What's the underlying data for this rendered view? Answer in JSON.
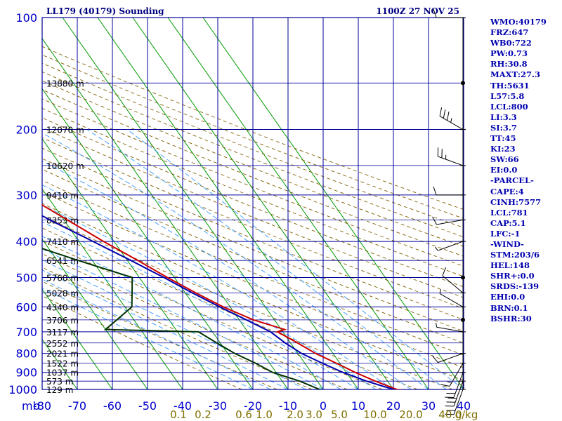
{
  "header": {
    "station": "LL179 (40179) Sounding",
    "time": "1100Z 27 NOV 25"
  },
  "chart_data": {
    "type": "skew-t",
    "y_unit_label": "mb",
    "pressure_levels": [
      100,
      200,
      300,
      400,
      500,
      600,
      700,
      800,
      900,
      1000
    ],
    "pressure_range": [
      100,
      1000
    ],
    "temperature_ticks": [
      -80,
      -70,
      -60,
      -50,
      -40,
      -30,
      -20,
      -10,
      0,
      10,
      20,
      30,
      40
    ],
    "temperature_range": [
      -80,
      40
    ],
    "height_labels": [
      {
        "p": 150,
        "label": "13880 m"
      },
      {
        "p": 200,
        "label": "12070 m"
      },
      {
        "p": 250,
        "label": "10620 m"
      },
      {
        "p": 300,
        "label": "9410 m"
      },
      {
        "p": 350,
        "label": "8353 m"
      },
      {
        "p": 400,
        "label": "7410 m"
      },
      {
        "p": 450,
        "label": "6541 m"
      },
      {
        "p": 500,
        "label": "5760 m"
      },
      {
        "p": 550,
        "label": "5028 m"
      },
      {
        "p": 600,
        "label": "4340 m"
      },
      {
        "p": 650,
        "label": "3706 m"
      },
      {
        "p": 700,
        "label": "3117 m"
      },
      {
        "p": 750,
        "label": "2552 m"
      },
      {
        "p": 800,
        "label": "2021 m"
      },
      {
        "p": 850,
        "label": "1522 m"
      },
      {
        "p": 900,
        "label": "1037 m"
      },
      {
        "p": 950,
        "label": "573 m"
      },
      {
        "p": 1000,
        "label": "129 m"
      }
    ],
    "mixing_ratio_labels": [
      "0.1",
      "0.2",
      "0.6",
      "1.0",
      "2.0",
      "3.0",
      "5.0",
      "10.0",
      "20.0",
      "40.0"
    ],
    "mixing_ratio_unit": "g/kg",
    "series": [
      {
        "color": "#cc0000",
        "points": [
          [
            1010,
            25
          ],
          [
            1000,
            21
          ],
          [
            950,
            16.5
          ],
          [
            900,
            12.5
          ],
          [
            850,
            9
          ],
          [
            800,
            5
          ],
          [
            750,
            2
          ],
          [
            700,
            -1.5
          ],
          [
            690,
            1
          ],
          [
            650,
            -6
          ],
          [
            600,
            -12
          ],
          [
            550,
            -17
          ],
          [
            500,
            -22
          ],
          [
            450,
            -27
          ],
          [
            400,
            -33
          ],
          [
            350,
            -39
          ],
          [
            300,
            -46
          ],
          [
            270,
            -49
          ],
          [
            250,
            -54
          ],
          [
            220,
            -56
          ],
          [
            200,
            -57
          ],
          [
            150,
            -65
          ],
          [
            130,
            -65
          ],
          [
            120,
            -65
          ],
          [
            110,
            -66
          ],
          [
            100,
            -66
          ]
        ]
      },
      {
        "color": "#003300",
        "points": [
          [
            1010,
            0
          ],
          [
            1000,
            -1
          ],
          [
            950,
            -5
          ],
          [
            900,
            -11
          ],
          [
            850,
            -14
          ],
          [
            800,
            -18
          ],
          [
            750,
            -21
          ],
          [
            700,
            -24
          ],
          [
            690,
            -50
          ],
          [
            600,
            -38
          ],
          [
            500,
            -32
          ],
          [
            450,
            -44
          ],
          [
            380,
            -62
          ],
          [
            350,
            -48
          ],
          [
            320,
            -68
          ],
          [
            300,
            -70
          ],
          [
            250,
            -74
          ],
          [
            200,
            -80
          ],
          [
            180,
            -80
          ]
        ]
      },
      {
        "color": "#0000aa",
        "points": [
          [
            1010,
            21
          ],
          [
            1000,
            20
          ],
          [
            950,
            14
          ],
          [
            900,
            9
          ],
          [
            850,
            5
          ],
          [
            800,
            1
          ],
          [
            750,
            -1.5
          ],
          [
            700,
            -3.5
          ],
          [
            650,
            -8
          ],
          [
            600,
            -13
          ],
          [
            550,
            -18
          ],
          [
            500,
            -23
          ],
          [
            450,
            -29
          ],
          [
            400,
            -36
          ],
          [
            350,
            -44
          ],
          [
            300,
            -52
          ],
          [
            250,
            -62
          ],
          [
            200,
            -73
          ],
          [
            170,
            -80
          ]
        ]
      }
    ],
    "wind_barbs": [
      {
        "p": 100,
        "dir": 270,
        "spd": 10
      },
      {
        "p": 150,
        "dir": 290,
        "spd": 0
      },
      {
        "p": 200,
        "dir": 300,
        "spd": 35
      },
      {
        "p": 250,
        "dir": 290,
        "spd": 25
      },
      {
        "p": 300,
        "dir": 270,
        "spd": 10
      },
      {
        "p": 350,
        "dir": 260,
        "spd": 10
      },
      {
        "p": 400,
        "dir": 250,
        "spd": 5
      },
      {
        "p": 500,
        "dir": 0,
        "spd": 0
      },
      {
        "p": 550,
        "dir": 310,
        "spd": 10
      },
      {
        "p": 600,
        "dir": 300,
        "spd": 5
      },
      {
        "p": 650,
        "dir": 0,
        "spd": 0
      },
      {
        "p": 700,
        "dir": 280,
        "spd": 5
      },
      {
        "p": 800,
        "dir": 250,
        "spd": 10
      },
      {
        "p": 850,
        "dir": 210,
        "spd": 15
      },
      {
        "p": 900,
        "dir": 200,
        "spd": 20
      },
      {
        "p": 950,
        "dir": 200,
        "spd": 30
      },
      {
        "p": 1000,
        "dir": 200,
        "spd": 20
      }
    ],
    "grid": true
  },
  "stats": [
    "WMO:40179",
    "FRZ:647",
    "WB0:722",
    "PW:0.73",
    "RH:30.8",
    "MAXT:27.3",
    "TH:5631",
    "L57:5.8",
    "LCL:800",
    "LI:3.3",
    "SI:3.7",
    "TT:45",
    "KI:23",
    "SW:66",
    "EI:0.0",
    "-PARCEL-",
    "CAPE:4",
    "CINH:7577",
    "LCL:781",
    "CAP:5.1",
    "LFC:-1",
    "-WIND-",
    "STM:203/6",
    "HEL:148",
    "SHR+:0.0",
    "SRDS:-139",
    "EHI:0.0",
    "BRN:0.1",
    "BSHR:30"
  ],
  "colors": {
    "frame": "#000099",
    "isotherm": "#009900",
    "dry_adiabat": "#806000",
    "moist_adiabat": "#3399ff"
  }
}
